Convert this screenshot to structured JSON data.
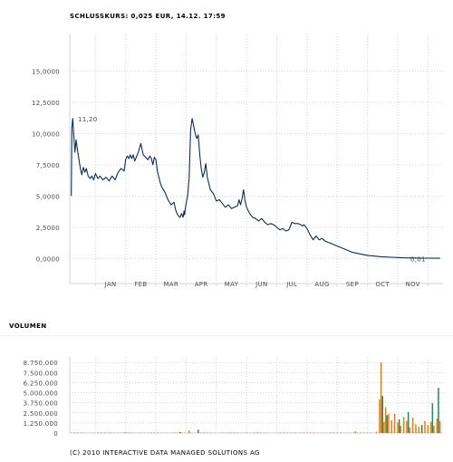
{
  "header": {
    "quote": "SCHLUSSKURS: 0,025 EUR, 14.12. 17:59"
  },
  "volume_title": "VOLUMEN",
  "footer": {
    "copyright": "(C) 2010 INTERACTIVE DATA MANAGED SOLUTIONS AG"
  },
  "colors": {
    "price_line": "#0d2c56",
    "grid": "#cfd6db",
    "axis_text": "#4a4a4a",
    "header_text": "#0d2c56",
    "volume_orange": "#f07a10",
    "volume_green": "#1f8a5c",
    "volume_divider": "#e7e7e7"
  },
  "chart_data": [
    {
      "type": "line",
      "title": "",
      "xlabel": "",
      "ylabel": "",
      "x_tick_labels": [
        "JAN",
        "FEB",
        "MAR",
        "APR",
        "MAY",
        "JUN",
        "JUL",
        "AUG",
        "SEP",
        "OCT",
        "NOV"
      ],
      "y_tick_labels": [
        "0,0000",
        "2,5000",
        "5,0000",
        "7,5000",
        "10,0000",
        "12,5000",
        "15,0000"
      ],
      "yticks": [
        0,
        2.5,
        5,
        7.5,
        10,
        12.5,
        15
      ],
      "ylim": [
        -2,
        18
      ],
      "grid": true,
      "x_unit": "months (0 = January 1)",
      "xlim": [
        -0.85,
        11.5
      ],
      "annotations": [
        {
          "text": "11,20",
          "x": -0.7,
          "y": 11.2
        },
        {
          "text": "0,01",
          "x": 10.3,
          "y": 0.01
        }
      ],
      "series": [
        {
          "x": [
            -0.8,
            -0.78,
            -0.75,
            -0.72,
            -0.68,
            -0.64,
            -0.6,
            -0.55,
            -0.5,
            -0.45,
            -0.4,
            -0.35,
            -0.3,
            -0.24,
            -0.18,
            -0.12,
            -0.06,
            0,
            0.08,
            0.15,
            0.25,
            0.35,
            0.45,
            0.55,
            0.65,
            0.75,
            0.85,
            0.95,
            1.0,
            1.05,
            1.1,
            1.15,
            1.2,
            1.25,
            1.3,
            1.35,
            1.42,
            1.5,
            1.58,
            1.66,
            1.74,
            1.8,
            1.85,
            1.9,
            1.95,
            2.0,
            2.05,
            2.1,
            2.15,
            2.2,
            2.3,
            2.4,
            2.5,
            2.6,
            2.65,
            2.7,
            2.75,
            2.8,
            2.85,
            2.9,
            2.93,
            2.95,
            2.97,
            3.0,
            3.05,
            3.1,
            3.15,
            3.2,
            3.25,
            3.3,
            3.35,
            3.4,
            3.45,
            3.5,
            3.55,
            3.6,
            3.65,
            3.7,
            3.75,
            3.8,
            3.9,
            4.0,
            4.1,
            4.2,
            4.3,
            4.4,
            4.5,
            4.6,
            4.7,
            4.75,
            4.8,
            4.85,
            4.9,
            4.95,
            5.0,
            5.1,
            5.2,
            5.3,
            5.4,
            5.5,
            5.6,
            5.7,
            5.8,
            5.9,
            6.0,
            6.1,
            6.2,
            6.3,
            6.4,
            6.5,
            6.6,
            6.7,
            6.8,
            6.85,
            6.9,
            7.0,
            7.1,
            7.2,
            7.3,
            7.4,
            7.5,
            7.6,
            7.7,
            7.8,
            7.9,
            8.0,
            8.1,
            8.2,
            8.3,
            8.4,
            8.5,
            8.6,
            8.7,
            8.8,
            8.9,
            9.0,
            9.2,
            9.4,
            9.6,
            9.8,
            10.0,
            10.2,
            10.4,
            10.6,
            10.8,
            11.0,
            11.2,
            11.4
          ],
          "values": [
            5.0,
            10.5,
            11.2,
            10.0,
            8.5,
            9.5,
            8.8,
            8.0,
            7.2,
            6.7,
            7.3,
            6.9,
            7.2,
            6.6,
            6.4,
            6.6,
            6.3,
            6.8,
            6.4,
            6.6,
            6.3,
            6.5,
            6.2,
            6.6,
            6.3,
            6.9,
            7.2,
            7.0,
            7.9,
            8.2,
            8.0,
            8.3,
            8.0,
            8.3,
            7.8,
            8.1,
            8.5,
            9.2,
            8.3,
            8.1,
            7.9,
            8.2,
            8.0,
            7.5,
            8.1,
            7.9,
            7.0,
            6.5,
            6.0,
            5.7,
            5.3,
            4.7,
            4.3,
            4.5,
            3.9,
            3.6,
            3.4,
            3.3,
            3.6,
            3.3,
            3.8,
            3.5,
            3.9,
            4.4,
            5.0,
            6.5,
            10.3,
            11.2,
            10.6,
            10.0,
            9.6,
            9.9,
            8.4,
            7.2,
            6.5,
            6.9,
            7.6,
            6.5,
            6.0,
            5.5,
            5.2,
            4.6,
            4.7,
            4.4,
            4.1,
            4.3,
            4.0,
            4.1,
            4.2,
            4.7,
            4.3,
            4.8,
            5.5,
            4.6,
            4.1,
            3.6,
            3.3,
            3.2,
            3.0,
            3.2,
            2.9,
            2.7,
            2.8,
            2.7,
            2.5,
            2.3,
            2.4,
            2.2,
            2.3,
            2.9,
            2.8,
            2.8,
            2.7,
            2.6,
            2.7,
            2.4,
            1.9,
            1.5,
            1.8,
            1.5,
            1.6,
            1.4,
            1.3,
            1.2,
            1.1,
            1.0,
            0.9,
            0.8,
            0.7,
            0.6,
            0.5,
            0.45,
            0.4,
            0.35,
            0.3,
            0.25,
            0.2,
            0.15,
            0.12,
            0.1,
            0.08,
            0.06,
            0.05,
            0.04,
            0.03,
            0.03,
            0.02,
            0.02
          ]
        }
      ]
    },
    {
      "type": "bar",
      "title": "",
      "xlabel": "",
      "ylabel": "",
      "y_tick_labels": [
        "0",
        "1.250.000",
        "2.500.000",
        "3.750.000",
        "5.000.000",
        "6.250.000",
        "7.500.000",
        "8.750.000"
      ],
      "yticks": [
        0,
        1250000,
        2500000,
        3750000,
        5000000,
        6250000,
        7500000,
        8750000
      ],
      "ylim": [
        0,
        9000000
      ],
      "grid": true,
      "x_unit": "months (0 = January 1)",
      "xlim": [
        -0.85,
        11.5
      ],
      "series": [
        {
          "color": "orange",
          "x": [
            0.5,
            1.5,
            2.5,
            3.1,
            4.2,
            5.4,
            6.6,
            7.8,
            8.6,
            9.3,
            9.4,
            9.45,
            9.5,
            9.55,
            9.6,
            9.7,
            9.8,
            9.9,
            10.0,
            10.1,
            10.2,
            10.3,
            10.4,
            10.5,
            10.6,
            10.7,
            10.8,
            10.9,
            11.0,
            11.1,
            11.2,
            11.3,
            11.4
          ],
          "values": [
            60000,
            50000,
            40000,
            300000,
            60000,
            50000,
            60000,
            70000,
            200000,
            150000,
            4200000,
            8750000,
            2700000,
            1400000,
            3200000,
            2400000,
            1600000,
            2400000,
            1300000,
            900000,
            2000000,
            1500000,
            700000,
            1900000,
            1100000,
            800000,
            600000,
            1500000,
            1000000,
            1400000,
            900000,
            1800000,
            1500000
          ]
        },
        {
          "color": "green",
          "x": [
            1.0,
            2.8,
            3.4,
            5.0,
            9.5,
            9.65,
            10.05,
            10.35,
            10.8,
            11.15,
            11.35
          ],
          "values": [
            60000,
            100000,
            400000,
            50000,
            4600000,
            2200000,
            1700000,
            2600000,
            1000000,
            3700000,
            5600000
          ]
        }
      ]
    }
  ]
}
